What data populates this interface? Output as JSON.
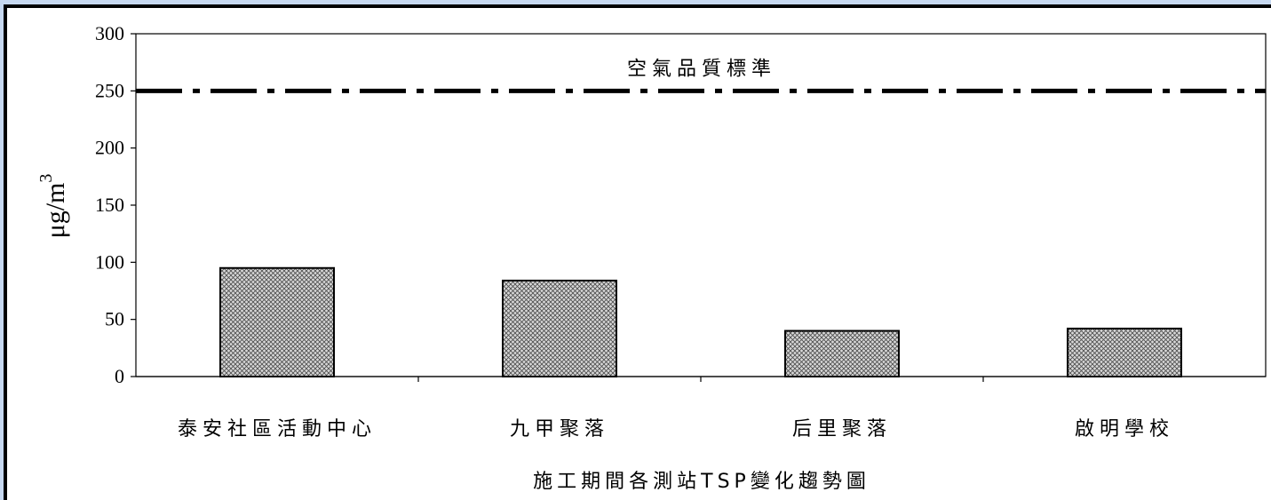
{
  "chart_data": {
    "type": "bar",
    "categories": [
      "泰安社區活動中心",
      "九甲聚落",
      "后里聚落",
      "啟明學校"
    ],
    "values": [
      95,
      84,
      40,
      42
    ],
    "ylabel": "μg/m",
    "ylabel_superscript": "3",
    "ylim": [
      0,
      300
    ],
    "yticks": [
      0,
      50,
      100,
      150,
      200,
      250,
      300
    ],
    "reference_line": {
      "value": 250,
      "label": "空氣品質標準",
      "style": "dash-dot"
    },
    "caption": "施工期間各測站TSP變化趨勢圖",
    "bar_fill": "crosshatch-gray",
    "grid": false
  }
}
